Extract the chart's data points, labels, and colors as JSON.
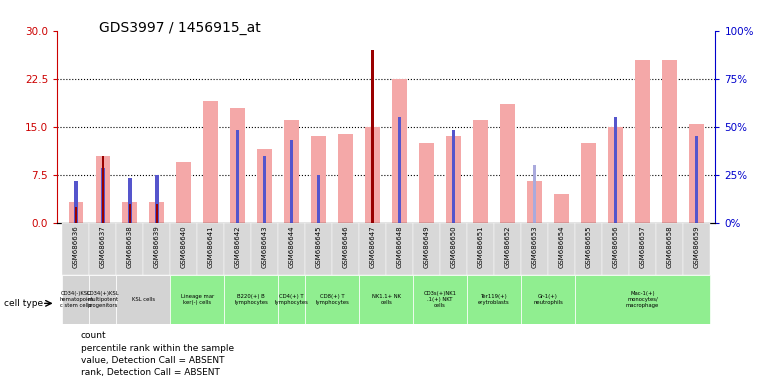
{
  "title": "GDS3997 / 1456915_at",
  "samples": [
    "GSM686636",
    "GSM686637",
    "GSM686638",
    "GSM686639",
    "GSM686640",
    "GSM686641",
    "GSM686642",
    "GSM686643",
    "GSM686644",
    "GSM686645",
    "GSM686646",
    "GSM686647",
    "GSM686648",
    "GSM686649",
    "GSM686650",
    "GSM686651",
    "GSM686652",
    "GSM686653",
    "GSM686654",
    "GSM686655",
    "GSM686656",
    "GSM686657",
    "GSM686658",
    "GSM686659"
  ],
  "count_values": [
    2.5,
    10.5,
    3.0,
    3.0,
    0,
    0,
    0,
    0,
    0,
    0,
    0,
    27.0,
    0,
    0,
    0,
    0,
    0,
    0,
    0,
    0,
    0,
    0,
    0,
    0
  ],
  "pink_values": [
    3.2,
    10.5,
    3.2,
    3.2,
    9.5,
    19.0,
    18.0,
    11.5,
    16.0,
    13.5,
    13.8,
    15.0,
    22.5,
    12.5,
    13.5,
    16.0,
    18.5,
    6.5,
    4.5,
    12.5,
    15.0,
    25.5,
    25.5,
    15.5
  ],
  "blue_rank_values": [
    6.5,
    8.5,
    7.0,
    7.5,
    0,
    0,
    14.5,
    10.5,
    13.0,
    7.5,
    0,
    15.0,
    16.5,
    0,
    14.5,
    0,
    0,
    0,
    0,
    0,
    16.5,
    0,
    0,
    13.5
  ],
  "light_blue_values": [
    0,
    0,
    0,
    0,
    0,
    0,
    0,
    0,
    0,
    0,
    0,
    0,
    0,
    0,
    0,
    0,
    0,
    9.0,
    0,
    0,
    0,
    0,
    0,
    0
  ],
  "cell_types": [
    {
      "label": "CD34(-)KSL\nhematopoiet\nc stem cells",
      "start": 0,
      "end": 1,
      "color": "#d3d3d3"
    },
    {
      "label": "CD34(+)KSL\nmultipotent\nprogenitors",
      "start": 1,
      "end": 2,
      "color": "#d3d3d3"
    },
    {
      "label": "KSL cells",
      "start": 2,
      "end": 4,
      "color": "#d3d3d3"
    },
    {
      "label": "Lineage mar\nker(-) cells",
      "start": 4,
      "end": 6,
      "color": "#90ee90"
    },
    {
      "label": "B220(+) B\nlymphocytes",
      "start": 6,
      "end": 8,
      "color": "#90ee90"
    },
    {
      "label": "CD4(+) T\nlymphocytes",
      "start": 8,
      "end": 9,
      "color": "#90ee90"
    },
    {
      "label": "CD8(+) T\nlymphocytes",
      "start": 9,
      "end": 11,
      "color": "#90ee90"
    },
    {
      "label": "NK1.1+ NK\ncells",
      "start": 11,
      "end": 13,
      "color": "#90ee90"
    },
    {
      "label": "CD3s(+)NK1\n.1(+) NKT\ncells",
      "start": 13,
      "end": 15,
      "color": "#90ee90"
    },
    {
      "label": "Ter119(+)\nerytroblasts",
      "start": 15,
      "end": 17,
      "color": "#90ee90"
    },
    {
      "label": "Gr-1(+)\nneutrophils",
      "start": 17,
      "end": 19,
      "color": "#90ee90"
    },
    {
      "label": "Mac-1(+)\nmonocytes/\nmacrophage",
      "start": 19,
      "end": 24,
      "color": "#90ee90"
    }
  ],
  "ylim_left": [
    0,
    30
  ],
  "ylim_right": [
    0,
    100
  ],
  "yticks_left": [
    0,
    7.5,
    15,
    22.5,
    30
  ],
  "yticks_right": [
    0,
    25,
    50,
    75,
    100
  ],
  "pink_color": "#f4a8a8",
  "dark_red_color": "#990000",
  "blue_color": "#5555cc",
  "light_blue_color": "#aaaadd",
  "bg_color": "#ffffff",
  "ylabel_left_color": "#cc0000",
  "ylabel_right_color": "#0000cc"
}
